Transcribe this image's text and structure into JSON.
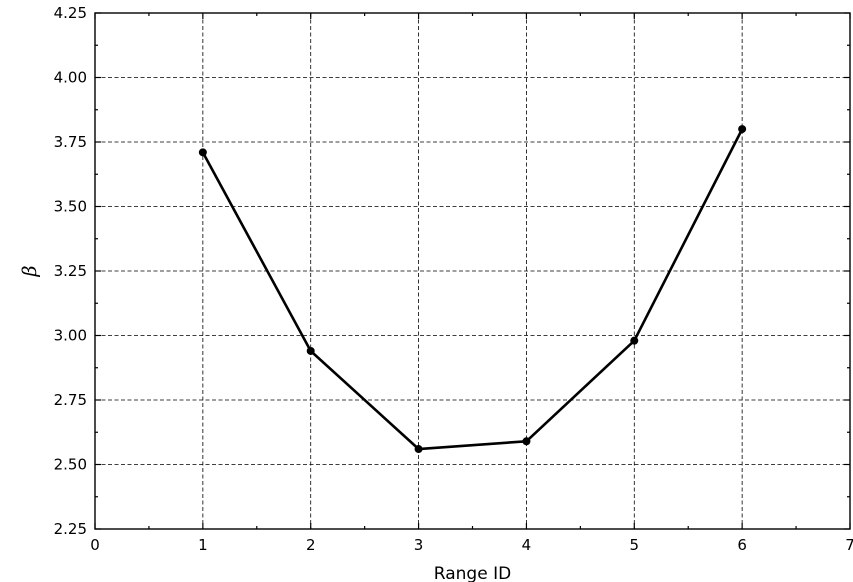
{
  "chart_data": {
    "type": "line",
    "title": "",
    "xlabel": "Range ID",
    "ylabel": "β",
    "xlim": [
      0,
      7
    ],
    "ylim": [
      2.25,
      4.25
    ],
    "xticks": [
      0,
      1,
      2,
      3,
      4,
      5,
      6,
      7
    ],
    "yticks": [
      2.25,
      2.5,
      2.75,
      3.0,
      3.25,
      3.5,
      3.75,
      4.0,
      4.25
    ],
    "xtick_labels": [
      "0",
      "1",
      "2",
      "3",
      "4",
      "5",
      "6",
      "7"
    ],
    "ytick_labels": [
      "2.25",
      "2.50",
      "2.75",
      "3.00",
      "3.25",
      "3.50",
      "3.75",
      "4.00",
      "4.25"
    ],
    "grid": true,
    "series": [
      {
        "color": "#000000",
        "marker": "circle",
        "x": [
          1,
          2,
          3,
          4,
          5,
          6
        ],
        "y": [
          3.71,
          2.94,
          2.56,
          2.59,
          2.98,
          3.8
        ]
      }
    ]
  }
}
